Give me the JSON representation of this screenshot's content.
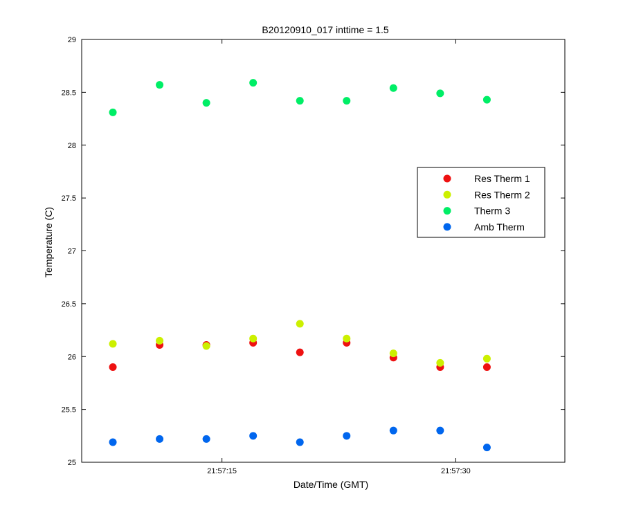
{
  "chart_data": {
    "type": "scatter",
    "title": "B20120910_017 inttime = 1.5",
    "xlabel": "Date/Time (GMT)",
    "ylabel": "Temperature (C)",
    "x_times": [
      "21:57:08",
      "21:57:11",
      "21:57:14",
      "21:57:17",
      "21:57:20",
      "21:57:23",
      "21:57:26",
      "21:57:29",
      "21:57:32"
    ],
    "xlim": [
      "21:57:06",
      "21:57:37"
    ],
    "xticks": [
      "21:57:15",
      "21:57:30"
    ],
    "ylim": [
      25,
      29
    ],
    "yticks": [
      "25",
      "25.5",
      "26",
      "26.5",
      "27",
      "27.5",
      "28",
      "28.5",
      "29"
    ],
    "grid": false,
    "legend_position": "right",
    "series": [
      {
        "name": "Res Therm 1",
        "color": "#ee1111",
        "values": [
          25.9,
          26.11,
          26.11,
          26.13,
          26.04,
          26.13,
          25.99,
          25.9,
          25.9
        ]
      },
      {
        "name": "Res Therm 2",
        "color": "#ccf000",
        "values": [
          26.12,
          26.15,
          26.1,
          26.17,
          26.31,
          26.17,
          26.03,
          25.94,
          25.98
        ]
      },
      {
        "name": "Therm 3",
        "color": "#00ee66",
        "values": [
          28.31,
          28.57,
          28.4,
          28.59,
          28.42,
          28.42,
          28.54,
          28.49,
          28.43
        ]
      },
      {
        "name": "Amb Therm",
        "color": "#0066ee",
        "values": [
          25.19,
          25.22,
          25.22,
          25.25,
          25.19,
          25.25,
          25.3,
          25.3,
          25.14
        ]
      }
    ]
  }
}
